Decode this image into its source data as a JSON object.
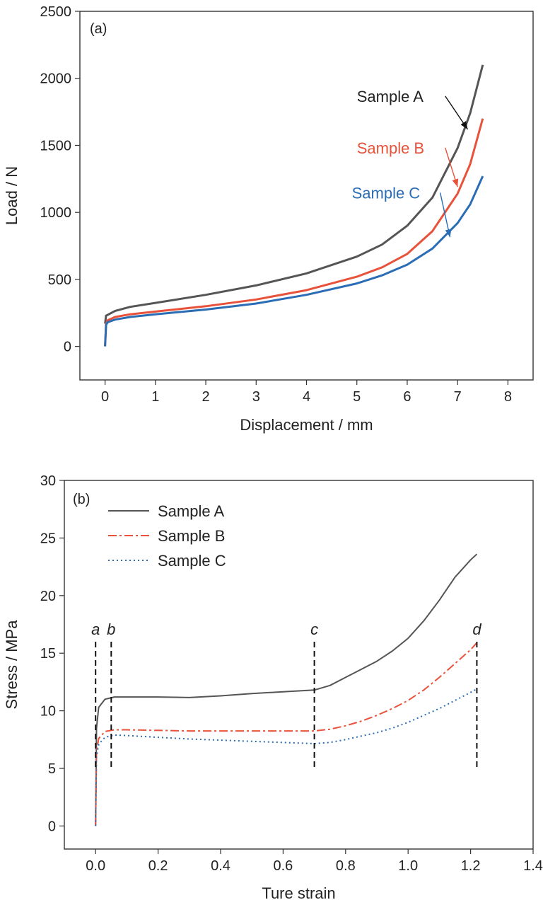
{
  "chart_data": [
    {
      "type": "line",
      "panel_label": "(a)",
      "xlabel": "Displacement / mm",
      "ylabel": "Load / N",
      "xlim": [
        -0.5,
        8.5
      ],
      "ylim": [
        -250,
        2500
      ],
      "xticks": [
        0,
        1,
        2,
        3,
        4,
        5,
        6,
        7,
        8
      ],
      "yticks": [
        0,
        500,
        1000,
        1500,
        2000,
        2500
      ],
      "series": [
        {
          "name": "Sample A",
          "color": "#555555",
          "style": "solid",
          "label_at": [
            5.0,
            1825
          ],
          "arrow_to": [
            7.2,
            1620
          ],
          "x": [
            0,
            0.02,
            0.05,
            0.2,
            0.5,
            1,
            2,
            3,
            4,
            5,
            5.5,
            6,
            6.5,
            7,
            7.25,
            7.5
          ],
          "y": [
            170,
            230,
            235,
            265,
            295,
            325,
            385,
            455,
            545,
            670,
            760,
            900,
            1110,
            1480,
            1740,
            2100
          ]
        },
        {
          "name": "Sample B",
          "color": "#e8523a",
          "style": "solid",
          "label_at": [
            5.0,
            1440
          ],
          "arrow_to": [
            7.0,
            1190
          ],
          "x": [
            0,
            0.02,
            0.05,
            0.2,
            0.5,
            1,
            2,
            3,
            4,
            5,
            5.5,
            6,
            6.5,
            7,
            7.25,
            7.5
          ],
          "y": [
            0,
            165,
            195,
            220,
            240,
            260,
            300,
            350,
            420,
            520,
            590,
            690,
            860,
            1140,
            1360,
            1700
          ]
        },
        {
          "name": "Sample C",
          "color": "#2a6db5",
          "style": "solid",
          "label_at": [
            4.9,
            1105
          ],
          "arrow_to": [
            6.85,
            815
          ],
          "x": [
            0,
            0.02,
            0.05,
            0.2,
            0.5,
            1,
            2,
            3,
            4,
            5,
            5.5,
            6,
            6.5,
            7,
            7.25,
            7.5
          ],
          "y": [
            0,
            160,
            180,
            200,
            220,
            240,
            275,
            320,
            385,
            470,
            530,
            610,
            730,
            920,
            1060,
            1270
          ]
        }
      ]
    },
    {
      "type": "line",
      "panel_label": "(b)",
      "xlabel": "Ture strain",
      "ylabel": "Stress / MPa",
      "xlim": [
        -0.1,
        1.4
      ],
      "ylim": [
        -2,
        30
      ],
      "xticks": [
        0.0,
        0.2,
        0.4,
        0.6,
        0.8,
        1.0,
        1.2,
        1.4
      ],
      "xtick_labels": [
        "0.0",
        "0.2",
        "0.4",
        "0.6",
        "0.8",
        "1.0",
        "1.2",
        "1.4"
      ],
      "yticks": [
        0,
        5,
        10,
        15,
        20,
        25,
        30
      ],
      "legend": "top-left",
      "series": [
        {
          "name": "Sample A",
          "color": "#555555",
          "style": "solid",
          "x": [
            0,
            0.003,
            0.01,
            0.03,
            0.06,
            0.1,
            0.2,
            0.3,
            0.4,
            0.5,
            0.6,
            0.7,
            0.75,
            0.8,
            0.85,
            0.9,
            0.95,
            1.0,
            1.05,
            1.1,
            1.15,
            1.2,
            1.22
          ],
          "y": [
            0,
            8.5,
            10.3,
            11.0,
            11.2,
            11.2,
            11.2,
            11.15,
            11.3,
            11.5,
            11.65,
            11.8,
            12.2,
            12.9,
            13.6,
            14.3,
            15.2,
            16.3,
            17.8,
            19.6,
            21.6,
            23.1,
            23.6
          ]
        },
        {
          "name": "Sample B",
          "color": "#e8523a",
          "style": "dashdot",
          "x": [
            0,
            0.003,
            0.01,
            0.03,
            0.06,
            0.1,
            0.2,
            0.3,
            0.4,
            0.5,
            0.6,
            0.7,
            0.75,
            0.8,
            0.85,
            0.9,
            0.95,
            1.0,
            1.05,
            1.1,
            1.15,
            1.2,
            1.22
          ],
          "y": [
            0,
            6.5,
            7.6,
            8.2,
            8.35,
            8.35,
            8.3,
            8.25,
            8.25,
            8.25,
            8.25,
            8.25,
            8.4,
            8.7,
            9.1,
            9.6,
            10.2,
            10.9,
            11.8,
            12.9,
            14.1,
            15.3,
            15.9
          ]
        },
        {
          "name": "Sample C",
          "color": "#2a6db5",
          "style": "dotted",
          "x": [
            0,
            0.003,
            0.01,
            0.03,
            0.06,
            0.1,
            0.2,
            0.3,
            0.4,
            0.5,
            0.6,
            0.7,
            0.75,
            0.8,
            0.85,
            0.9,
            0.95,
            1.0,
            1.05,
            1.1,
            1.15,
            1.2,
            1.22
          ],
          "y": [
            0,
            6.0,
            7.1,
            7.7,
            7.9,
            7.85,
            7.7,
            7.55,
            7.45,
            7.35,
            7.25,
            7.15,
            7.25,
            7.5,
            7.8,
            8.1,
            8.5,
            9.0,
            9.6,
            10.2,
            10.9,
            11.6,
            11.9
          ]
        }
      ],
      "markers": [
        {
          "label": "a",
          "x": 0.0,
          "y0": 5,
          "y1": 16
        },
        {
          "label": "b",
          "x": 0.05,
          "y0": 5,
          "y1": 16
        },
        {
          "label": "c",
          "x": 0.7,
          "y0": 5,
          "y1": 16
        },
        {
          "label": "d",
          "x": 1.22,
          "y0": 5,
          "y1": 16
        }
      ]
    }
  ]
}
